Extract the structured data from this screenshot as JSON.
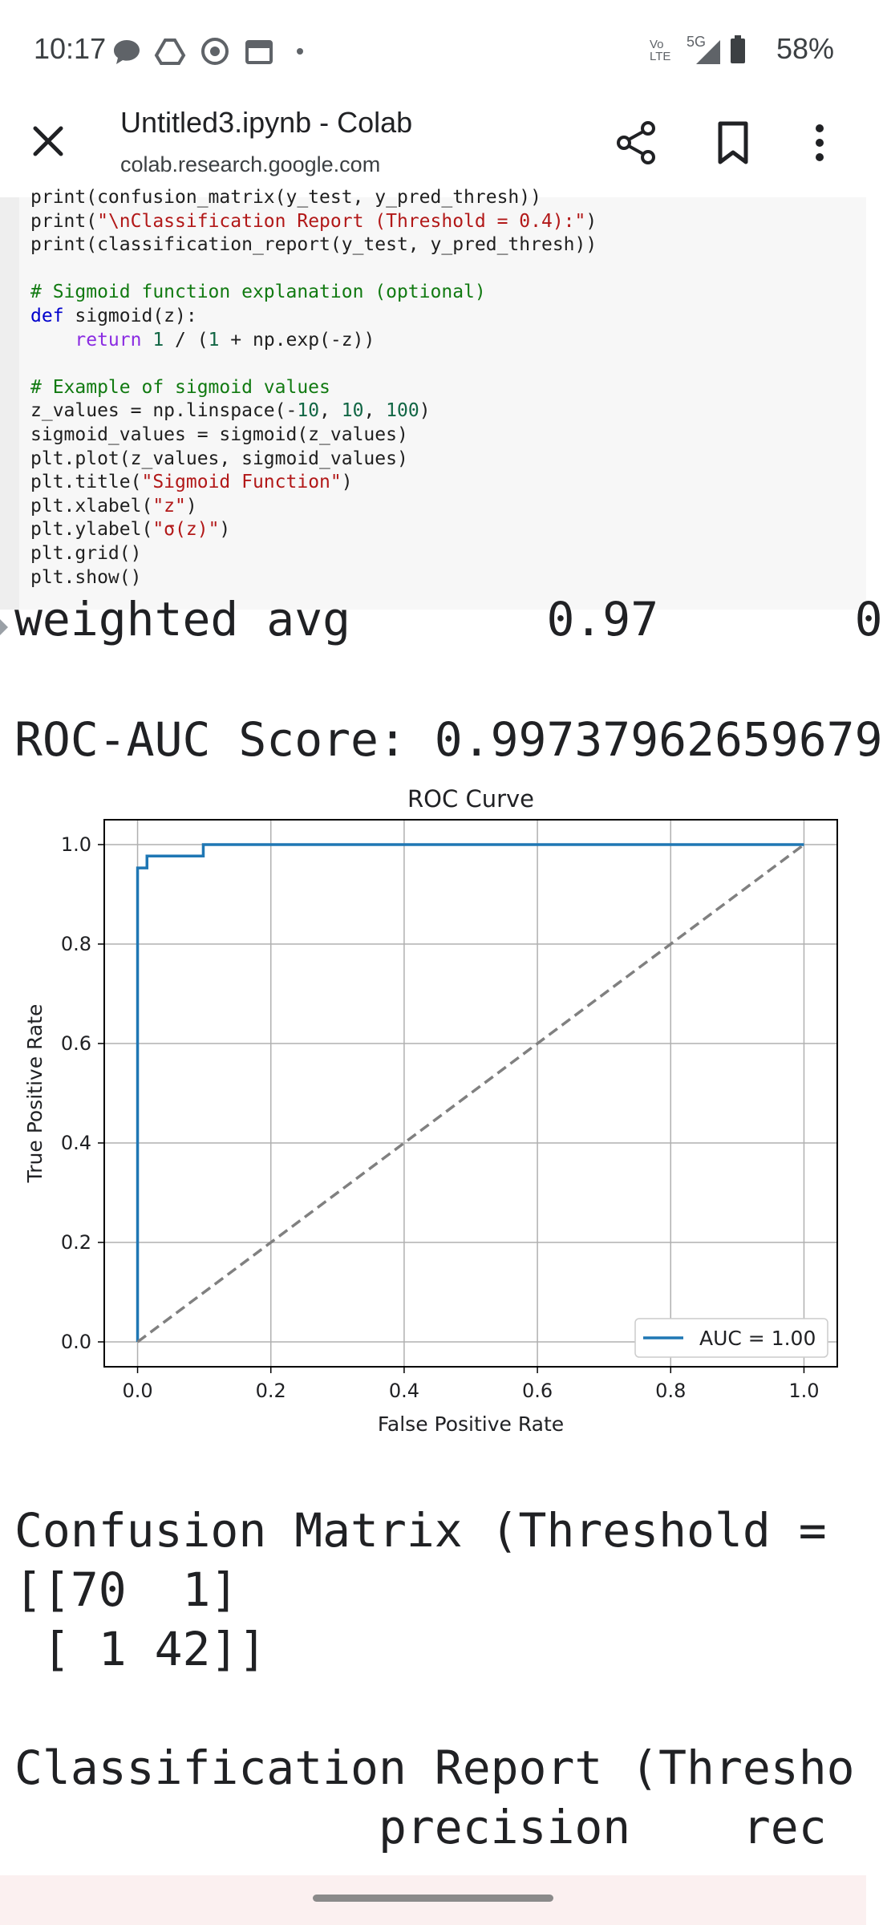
{
  "status": {
    "time": "10:17",
    "network_label": "Vo LTE",
    "signal_label": "5G",
    "battery": "58%"
  },
  "browser": {
    "title": "Untitled3.ipynb - Colab",
    "url": "colab.research.google.com"
  },
  "code": {
    "lines": [
      "print(confusion_matrix(y_test, y_pred_thresh))",
      "print(\"\\nClassification Report (Threshold = 0.4):\")",
      "print(classification_report(y_test, y_pred_thresh))",
      "",
      "# Sigmoid function explanation (optional)",
      "def sigmoid(z):",
      "    return 1 / (1 + np.exp(-z))",
      "",
      "# Example of sigmoid values",
      "z_values = np.linspace(-10, 10, 100)",
      "sigmoid_values = sigmoid(z_values)",
      "plt.plot(z_values, sigmoid_values)",
      "plt.title(\"Sigmoid Function\")",
      "plt.xlabel(\"z\")",
      "plt.ylabel(\"σ(z)\")",
      "plt.grid()",
      "plt.show()"
    ]
  },
  "output": {
    "weighted_avg_line": "weighted avg       0.97       0",
    "roc_auc_line": "ROC-AUC Score: 0.99737962659679",
    "confusion_title": "Confusion Matrix (Threshold = ",
    "confusion_row1": "[[70  1]",
    "confusion_row2": " [ 1 42]]",
    "report_title": "Classification Report (Thresho",
    "report_header": "             precision    rec"
  },
  "chart_data": {
    "type": "line",
    "title": "ROC Curve",
    "xlabel": "False Positive Rate",
    "ylabel": "True Positive Rate",
    "xlim": [
      -0.05,
      1.05
    ],
    "ylim": [
      -0.05,
      1.05
    ],
    "x_ticks": [
      "0.0",
      "0.2",
      "0.4",
      "0.6",
      "0.8",
      "1.0"
    ],
    "y_ticks": [
      "0.0",
      "0.2",
      "0.4",
      "0.6",
      "0.8",
      "1.0"
    ],
    "grid": true,
    "legend_position": "lower-right",
    "series": [
      {
        "name": "AUC = 1.00",
        "color": "#1f77b4",
        "style": "solid",
        "x": [
          0.0,
          0.0,
          0.0,
          0.0141,
          0.0141,
          0.0141,
          0.0986,
          0.0986,
          1.0
        ],
        "y": [
          0.0,
          0.023,
          0.953,
          0.953,
          0.977,
          0.977,
          0.977,
          1.0,
          1.0
        ]
      },
      {
        "name": "",
        "color": "#808080",
        "style": "dashed",
        "x": [
          0.0,
          1.0
        ],
        "y": [
          0.0,
          1.0
        ]
      }
    ]
  },
  "icons": {
    "close": "close-icon",
    "share": "share-icon",
    "bookmark": "bookmark-icon",
    "menu": "more-vert-icon"
  }
}
